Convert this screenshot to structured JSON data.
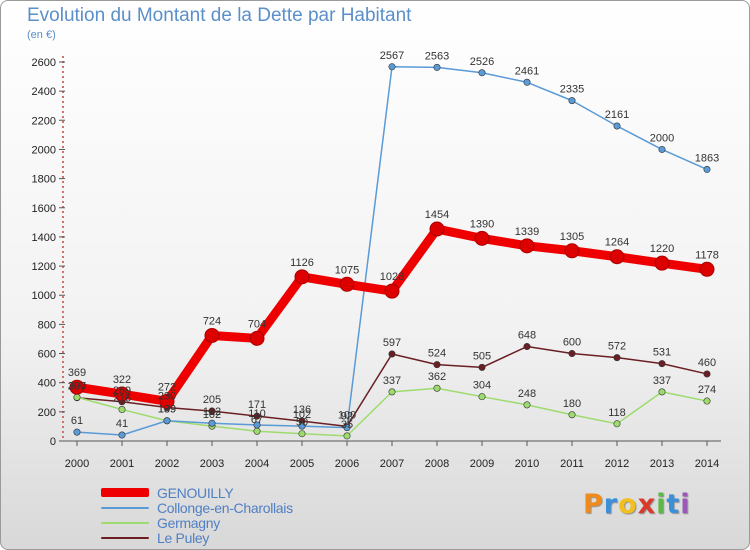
{
  "chart_data": {
    "type": "line",
    "title": "Evolution du Montant de la Dette par Habitant",
    "subtitle": "(en €)",
    "x": [
      "2000",
      "2001",
      "2002",
      "2003",
      "2004",
      "2005",
      "2006",
      "2007",
      "2008",
      "2009",
      "2010",
      "2011",
      "2012",
      "2013",
      "2014"
    ],
    "ylim": [
      0,
      2600
    ],
    "yticks": [
      0,
      200,
      400,
      600,
      800,
      1000,
      1200,
      1400,
      1600,
      1800,
      2000,
      2200,
      2400,
      2600
    ],
    "grid": false,
    "legend_position": "bottom-left",
    "series": [
      {
        "name": "GENOUILLY",
        "color": "#ee0000",
        "values": [
          369,
          322,
          272,
          724,
          704,
          1126,
          1075,
          1028,
          1454,
          1390,
          1339,
          1305,
          1264,
          1220,
          1178
        ]
      },
      {
        "name": "Collonge-en-Charollais",
        "color": "#5a9ad6",
        "values": [
          61,
          41,
          139,
          122,
          110,
          102,
          92,
          2567,
          2563,
          2526,
          2461,
          2335,
          2161,
          2000,
          1863
        ]
      },
      {
        "name": "Germagny",
        "color": "#9edb6e",
        "values": [
          300,
          216,
          139,
          102,
          67,
          50,
          35,
          337,
          362,
          304,
          248,
          180,
          118,
          337,
          274
        ]
      },
      {
        "name": "Le Puley",
        "color": "#6b1f24",
        "values": [
          297,
          269,
          230,
          205,
          171,
          136,
          100,
          597,
          524,
          505,
          648,
          600,
          572,
          531,
          460
        ]
      }
    ]
  },
  "logo": {
    "letters": [
      "P",
      "r",
      "o",
      "x",
      "i",
      "t",
      "i"
    ],
    "colors": [
      "#f08a1c",
      "#3a8fd8",
      "#f2c01e",
      "#d93a2a",
      "#5db84a",
      "#3a8fd8",
      "#9b59b6"
    ]
  }
}
